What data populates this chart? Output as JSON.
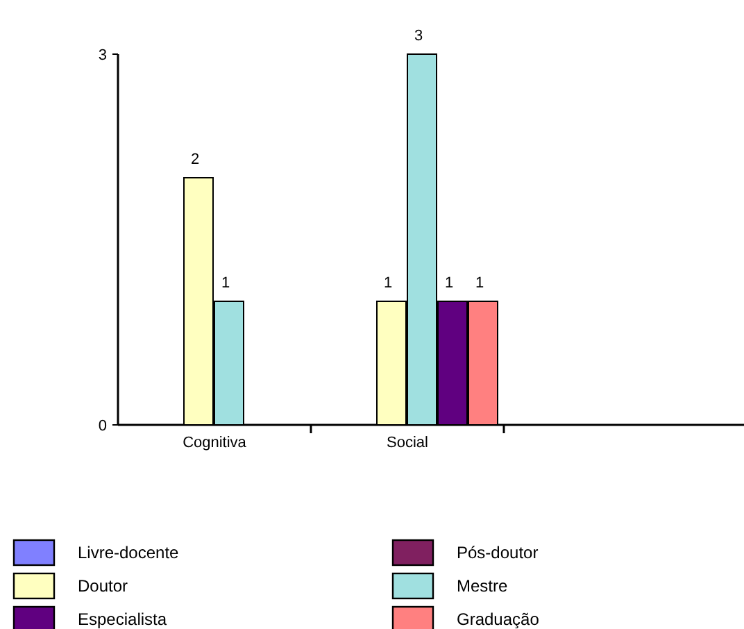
{
  "chart_data": {
    "type": "bar",
    "categories": [
      "Cognitiva",
      "Social",
      null
    ],
    "series": [
      {
        "name": "Livre-docente",
        "color": "#8080ff",
        "values": [
          null,
          null,
          null
        ]
      },
      {
        "name": "Pós-doutor",
        "color": "#802060",
        "values": [
          null,
          null,
          null
        ]
      },
      {
        "name": "Doutor",
        "color": "#ffffc0",
        "values": [
          2,
          1,
          null
        ]
      },
      {
        "name": "Mestre",
        "color": "#a0e0e0",
        "values": [
          1,
          3,
          null
        ]
      },
      {
        "name": "Especialista",
        "color": "#600080",
        "values": [
          null,
          1,
          null
        ]
      },
      {
        "name": "Graduação",
        "color": "#ff8080",
        "values": [
          null,
          1,
          null
        ]
      }
    ],
    "ylim": [
      0,
      3
    ],
    "yticks": [
      0,
      3
    ],
    "data_labels": true,
    "grid": false,
    "legend": "bottom"
  }
}
